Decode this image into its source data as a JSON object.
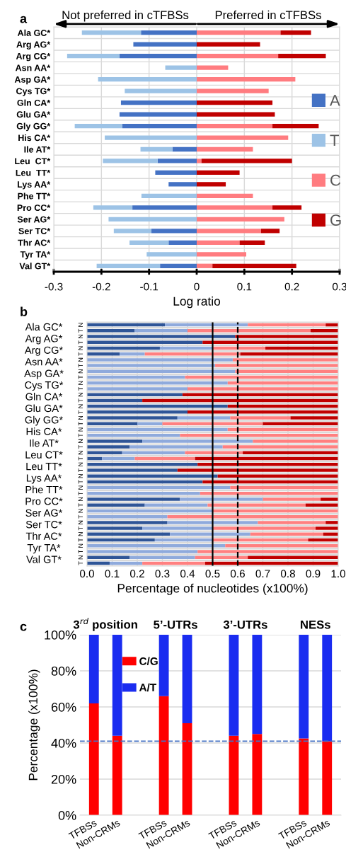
{
  "chart_data": [
    {
      "type": "bar",
      "orientation": "horizontal",
      "stacked": true,
      "title": "a",
      "xlabel": "Log ratio",
      "categories": [
        "Ala GC*",
        "Arg AG*",
        "Arg CG*",
        "Asn AA*",
        "Asp GA*",
        "Cys TG*",
        "Gln CA*",
        "Glu GA*",
        "Gly GG*",
        "His CA*",
        "Ile AT*",
        "Leu  CT*",
        "Leu  TT*",
        "Lys AA*",
        "Phe TT*",
        "Pro CC*",
        "Ser AG*",
        "Ser TC*",
        "Thr AC*",
        "Tyr TA*",
        "Val GT*"
      ],
      "series": [
        {
          "name": "A",
          "color": "#4472c4",
          "values": [
            -0.117,
            -0.133,
            -0.162,
            null,
            null,
            null,
            -0.159,
            -0.162,
            -0.156,
            null,
            -0.051,
            -0.082,
            -0.087,
            -0.059,
            null,
            -0.135,
            null,
            -0.095,
            -0.059,
            null,
            -0.077
          ]
        },
        {
          "name": "T",
          "color": "#9dc3e6",
          "values": [
            -0.124,
            null,
            -0.11,
            -0.066,
            -0.207,
            -0.151,
            null,
            null,
            -0.1,
            -0.193,
            -0.067,
            -0.115,
            null,
            null,
            -0.116,
            -0.082,
            -0.185,
            -0.079,
            -0.082,
            -0.105,
            -0.133
          ]
        },
        {
          "name": "C",
          "color": "#ff7c80",
          "values": [
            0.176,
            null,
            0.171,
            0.066,
            0.207,
            0.151,
            null,
            null,
            0.159,
            0.192,
            0.118,
            0.01,
            null,
            null,
            0.118,
            0.159,
            0.184,
            0.135,
            0.09,
            0.104,
            0.033
          ]
        },
        {
          "name": "G",
          "color": "#c00000",
          "values": [
            0.064,
            0.133,
            0.1,
            null,
            null,
            null,
            0.159,
            0.164,
            0.097,
            null,
            null,
            0.19,
            0.09,
            0.061,
            null,
            0.061,
            null,
            0.039,
            0.053,
            null,
            0.176
          ]
        }
      ],
      "xlim": [
        -0.3,
        0.3
      ],
      "xticks": [
        -0.3,
        -0.2,
        -0.1,
        0,
        0.1,
        0.2,
        0.3
      ],
      "grid": true,
      "legend": "right",
      "annotations": [
        "Not preferred in cTFBSs",
        "Preferred in cTFBSs"
      ]
    },
    {
      "type": "bar",
      "orientation": "horizontal",
      "stacked": true,
      "title": "b",
      "xlabel": "Percentage of nucleotides (x100%)",
      "categories": [
        "N",
        "T",
        "N",
        "T",
        "N",
        "T",
        "N",
        "T",
        "N",
        "T",
        "N",
        "T",
        "N",
        "T",
        "N",
        "T",
        "N",
        "T",
        "N",
        "T",
        "N",
        "T",
        "N",
        "T",
        "N",
        "T",
        "N",
        "T",
        "N",
        "T",
        "N",
        "T",
        "N",
        "T",
        "N",
        "T",
        "N",
        "T",
        "N",
        "T",
        "N",
        "T"
      ],
      "series": [
        {
          "color": "#2f5597",
          "values": [
            0.31,
            0.19,
            0.59,
            0.46,
            0.29,
            0.13,
            null,
            null,
            null,
            null,
            null,
            null,
            0.38,
            0.22,
            0.56,
            0.4,
            0.36,
            0.2,
            null,
            null,
            0.22,
            0.17,
            0.14,
            0.06,
            0.44,
            0.36,
            0.52,
            0.46,
            null,
            null,
            0.37,
            0.23,
            null,
            null,
            0.32,
            0.22,
            0.33,
            0.27,
            null,
            null,
            0.17,
            0.09
          ]
        },
        {
          "color": "#8faadc",
          "values": [
            0.33,
            0.21,
            null,
            null,
            0.21,
            0.1,
            0.58,
            0.51,
            0.59,
            0.39,
            0.56,
            0.4,
            null,
            null,
            null,
            null,
            0.21,
            0.1,
            0.56,
            0.37,
            0.44,
            0.37,
            0.25,
            0.13,
            null,
            null,
            null,
            null,
            0.57,
            0.45,
            0.33,
            0.25,
            0.5,
            0.32,
            0.36,
            0.28,
            0.32,
            0.23,
            0.55,
            0.44,
            0.26,
            0.13
          ]
        },
        {
          "color": "#ff8080",
          "values": [
            0.31,
            0.49,
            null,
            null,
            0.21,
            0.38,
            0.42,
            0.49,
            0.41,
            0.61,
            0.44,
            0.6,
            null,
            null,
            null,
            null,
            0.24,
            0.4,
            0.44,
            0.63,
            0.34,
            0.46,
            0.23,
            0.24,
            null,
            null,
            null,
            null,
            0.43,
            0.55,
            0.23,
            0.39,
            0.5,
            0.68,
            0.27,
            0.41,
            0.29,
            0.38,
            0.45,
            0.56,
            0.21,
            0.25
          ]
        },
        {
          "color": "#c00000",
          "values": [
            0.05,
            0.11,
            0.41,
            0.54,
            0.29,
            0.39,
            null,
            null,
            null,
            null,
            null,
            null,
            0.62,
            0.78,
            0.44,
            0.6,
            0.19,
            0.3,
            null,
            null,
            null,
            null,
            0.38,
            0.57,
            0.56,
            0.64,
            0.48,
            0.54,
            null,
            null,
            0.07,
            0.13,
            null,
            null,
            0.05,
            0.09,
            0.06,
            0.12,
            null,
            null,
            0.36,
            0.53
          ]
        }
      ],
      "xlim": [
        0,
        1
      ],
      "xticks": [
        {
          "value": 0,
          "label": "0.0"
        },
        0.1,
        0.2,
        0.3,
        0.4,
        0.5,
        0.6,
        0.7,
        0.8,
        0.9,
        {
          "value": 1,
          "label": "1.0"
        }
      ],
      "grid": true,
      "ref_lines": [
        {
          "axis": "x",
          "value": 0.5,
          "color": "#000000",
          "line_style": "solid"
        },
        {
          "axis": "x",
          "value": 0.6,
          "color": "#000000",
          "line_style": "dashed"
        }
      ],
      "annotations": [
        "Ala GC*",
        "Arg AG*",
        "Arg CG*",
        "Asn AA*",
        "Asp GA*",
        "Cys TG*",
        "Gln CA*",
        "Glu GA*",
        "Gly GG*",
        "His CA*",
        "Ile AT*",
        "Leu CT*",
        "Leu TT*",
        "Lys AA*",
        "Phe TT*",
        "Pro CC*",
        "Ser AG*",
        "Ser TC*",
        "Thr AC*",
        "Tyr TA*",
        "Val GT*"
      ]
    },
    {
      "type": "bar",
      "stacked": true,
      "title": "c",
      "ylabel": "Percentage (x100%)",
      "categories": [
        "TFBSs",
        "Non-CRMs",
        null,
        "TFBSs",
        "Non-CRMs",
        null,
        "TFBSs",
        "Non-CRMs",
        null,
        "TFBSs",
        "Non-CRMs"
      ],
      "series": [
        {
          "name": "C/G",
          "color": "#ff0000",
          "values": [
            62,
            44,
            null,
            66,
            51,
            null,
            44,
            45,
            null,
            42.5,
            41
          ]
        },
        {
          "name": "A/T",
          "color": "#1a2cf0",
          "values": [
            38,
            56,
            null,
            34,
            49,
            null,
            56,
            55,
            null,
            57.5,
            59
          ]
        }
      ],
      "ylim": [
        0,
        100
      ],
      "yticks": [
        {
          "value": 0,
          "label": "0%"
        },
        {
          "value": 20,
          "label": "20%"
        },
        {
          "value": 40,
          "label": "40%"
        },
        {
          "value": 60,
          "label": "60%"
        },
        {
          "value": 80,
          "label": "80%"
        },
        {
          "value": 100,
          "label": "100%"
        }
      ],
      "grid": "y",
      "legend": "top left",
      "ref_lines": [
        {
          "axis": "y",
          "value": 41,
          "color": "#4472c4",
          "line_style": "dashed"
        }
      ],
      "annotations": [
        "3$^{rd}$ position",
        "5’-UTRs",
        "3’-UTRs",
        "NESs"
      ]
    }
  ]
}
